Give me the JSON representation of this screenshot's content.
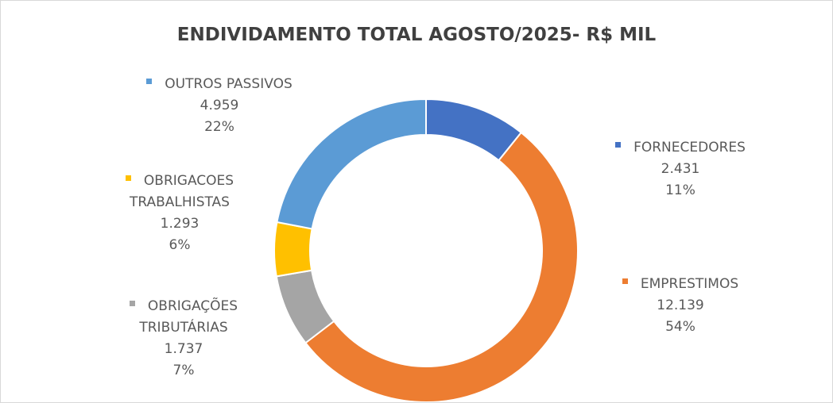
{
  "chart_data": {
    "type": "donut",
    "title": "ENDIVIDAMENTO TOTAL AGOSTO/2025- R$ MIL",
    "categories": [
      "FORNECEDORES",
      "EMPRESTIMOS",
      "OBRIGAÇÕES TRIBUTÁRIAS",
      "OBRIGACOES TRABALHISTAS",
      "OUTROS PASSIVOS"
    ],
    "values": [
      2431,
      12139,
      1737,
      1293,
      4959
    ],
    "value_labels": [
      "2.431",
      "12.139",
      "1.737",
      "1.293",
      "4.959"
    ],
    "percents": [
      11,
      54,
      7,
      6,
      22
    ],
    "percent_labels": [
      "11%",
      "54%",
      "7%",
      "6%",
      "22%"
    ],
    "colors": [
      "#4472c4",
      "#ed7d31",
      "#a5a5a5",
      "#ffc000",
      "#5b9bd5"
    ]
  }
}
